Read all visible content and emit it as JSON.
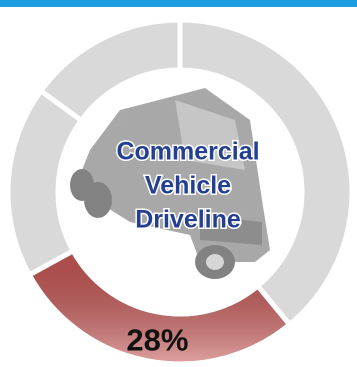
{
  "chart_data": {
    "type": "donut",
    "values": [
      39,
      28,
      18,
      15
    ],
    "colors": [
      "#d9d9d9",
      "#c65654",
      "#d9d9d9",
      "#d9d9d9"
    ],
    "value_labels": [
      null,
      "28%",
      null,
      null
    ],
    "center_label": [
      "Commercial",
      "Vehicle",
      "Driveline"
    ]
  }
}
